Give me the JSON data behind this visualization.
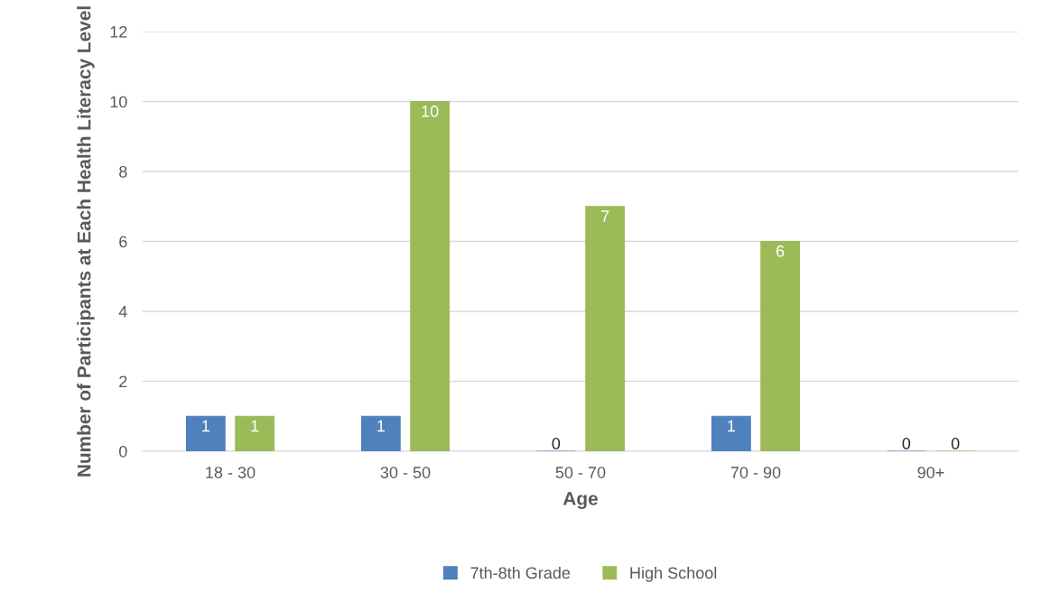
{
  "chart_data": {
    "type": "bar",
    "xlabel": "Age",
    "ylabel": "Number of Participants at Each Health Literacy Level",
    "categories": [
      "18 - 30",
      "30 - 50",
      "50 - 70",
      "70 - 90",
      "90+"
    ],
    "series": [
      {
        "name": "7th-8th Grade",
        "color": "#4f81bd",
        "values": [
          1,
          1,
          0,
          1,
          0
        ]
      },
      {
        "name": "High School",
        "color": "#9bbb59",
        "values": [
          1,
          10,
          7,
          6,
          0
        ]
      }
    ],
    "ylim": [
      0,
      12
    ],
    "yticks": [
      0,
      2,
      4,
      6,
      8,
      10,
      12
    ],
    "grid": "y",
    "legend": "bottom",
    "data_labels": true
  }
}
